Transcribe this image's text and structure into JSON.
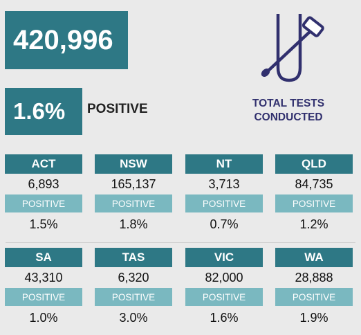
{
  "summary": {
    "total_tests": "420,996",
    "positive_rate": "1.6%",
    "positive_label": "POSITIVE",
    "caption_line1": "TOTAL TESTS",
    "caption_line2": "CONDUCTED",
    "icon": "test-tube-swab-icon"
  },
  "states": [
    {
      "name": "ACT",
      "tests": "6,893",
      "positive_label": "POSITIVE",
      "positive": "1.5%"
    },
    {
      "name": "NSW",
      "tests": "165,137",
      "positive_label": "POSITIVE",
      "positive": "1.8%"
    },
    {
      "name": "NT",
      "tests": "3,713",
      "positive_label": "POSITIVE",
      "positive": "0.7%"
    },
    {
      "name": "QLD",
      "tests": "84,735",
      "positive_label": "POSITIVE",
      "positive": "1.2%"
    },
    {
      "name": "SA",
      "tests": "43,310",
      "positive_label": "POSITIVE",
      "positive": "1.0%"
    },
    {
      "name": "TAS",
      "tests": "6,320",
      "positive_label": "POSITIVE",
      "positive": "3.0%"
    },
    {
      "name": "VIC",
      "tests": "82,000",
      "positive_label": "POSITIVE",
      "positive": "1.6%"
    },
    {
      "name": "WA",
      "tests": "28,888",
      "positive_label": "POSITIVE",
      "positive": "1.9%"
    }
  ],
  "colors": {
    "dark_teal": "#2e7885",
    "light_teal": "#7ab8c0",
    "icon_navy": "#31306e",
    "background": "#eaeaea"
  }
}
